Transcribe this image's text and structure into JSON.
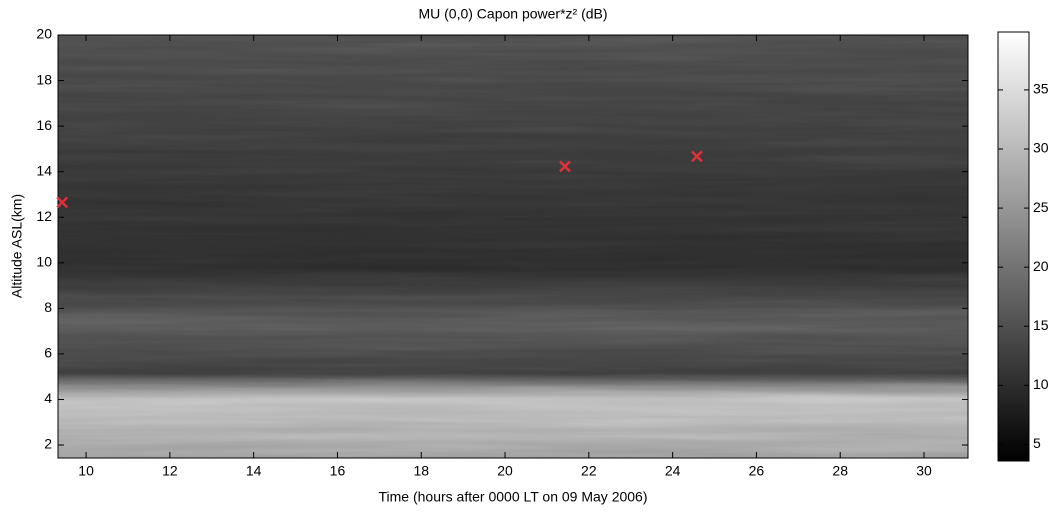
{
  "chart_data": {
    "type": "scatter",
    "title": "MU (0,0) Capon power*z² (dB)",
    "x_label": "Time (hours after 0000 LT on 09 May 2006)",
    "y_label": "Altitude ASL(km)",
    "x": [
      9.43,
      21.43,
      24.58
    ],
    "y": [
      12.65,
      14.23,
      14.67
    ],
    "marker": "x",
    "color": "#e0303a",
    "xlim": [
      9.33,
      31.05
    ],
    "xticks": [
      10,
      12,
      14,
      16,
      18,
      20,
      22,
      24,
      26,
      28,
      30
    ],
    "ylim": [
      1.43,
      20
    ],
    "yticks": [
      2,
      4,
      6,
      8,
      10,
      12,
      14,
      16,
      18,
      20
    ],
    "colorbar": {
      "lim": [
        3.6,
        39.9
      ],
      "ticks": [
        5,
        10,
        15,
        20,
        25,
        30,
        35
      ],
      "colormap": [
        "#000000",
        "#ffffff"
      ]
    }
  }
}
